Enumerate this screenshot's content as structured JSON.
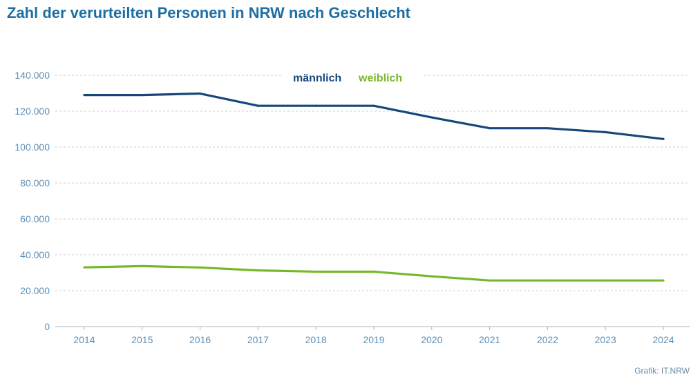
{
  "title": "Zahl der verurteilten Personen in NRW nach Geschlecht",
  "credit": "Grafik: IT.NRW",
  "chart_data": {
    "type": "line",
    "title": "Zahl der verurteilten Personen in NRW nach Geschlecht",
    "xlabel": "",
    "ylabel": "",
    "categories": [
      "2014",
      "2015",
      "2016",
      "2017",
      "2018",
      "2019",
      "2020",
      "2021",
      "2022",
      "2023",
      "2024"
    ],
    "ylim": [
      0,
      140000
    ],
    "y_ticks": [
      0,
      20000,
      40000,
      60000,
      80000,
      100000,
      120000,
      140000
    ],
    "y_tick_labels": [
      "0",
      "20.000",
      "40.000",
      "60.000",
      "80.000",
      "100.000",
      "120.000",
      "140.000"
    ],
    "grid": true,
    "legend_position": "top-center",
    "series": [
      {
        "name": "männlich",
        "color": "#16477a",
        "values": [
          129000,
          129000,
          129800,
          123000,
          123000,
          123000,
          116500,
          110500,
          110500,
          108300,
          104500
        ]
      },
      {
        "name": "weiblich",
        "color": "#76b82a",
        "values": [
          33000,
          33700,
          32900,
          31300,
          30600,
          30600,
          28000,
          25700,
          25700,
          25700,
          25700
        ]
      }
    ]
  }
}
